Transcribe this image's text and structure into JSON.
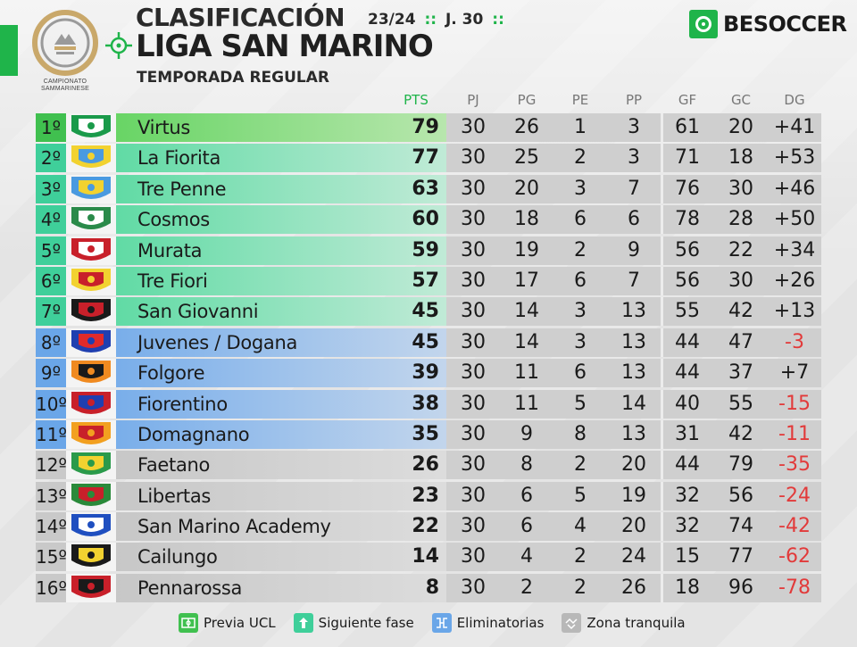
{
  "header": {
    "title": "CLASIFICACIÓN",
    "season": "23/24",
    "separator": "::",
    "matchday": "J. 30",
    "league": "LIGA SAN MARINO",
    "phase": "TEMPORADA REGULAR",
    "league_logo_caption": "CAMPIONATO SAMMARINESE",
    "brand": "BESOCCER"
  },
  "colors": {
    "accent": "#1fb44a",
    "negative": "#e23a3a",
    "ucl": "#40c04f",
    "next_phase": "#3fcf9a",
    "playoffs": "#6aa6e8",
    "safe": "#c9c9c9"
  },
  "columns": [
    "PTS",
    "PJ",
    "PG",
    "PE",
    "PP",
    "GF",
    "GC",
    "DG"
  ],
  "rows": [
    {
      "pos": "1º",
      "team": "Virtus",
      "pts": "79",
      "pj": "30",
      "pg": "26",
      "pe": "1",
      "pp": "3",
      "gf": "61",
      "gc": "20",
      "dg": "+41",
      "zone": "c1",
      "crest": "virtus-crest"
    },
    {
      "pos": "2º",
      "team": "La Fiorita",
      "pts": "77",
      "pj": "30",
      "pg": "25",
      "pe": "2",
      "pp": "3",
      "gf": "71",
      "gc": "18",
      "dg": "+53",
      "zone": "c2",
      "crest": "la-fiorita-crest"
    },
    {
      "pos": "3º",
      "team": "Tre Penne",
      "pts": "63",
      "pj": "30",
      "pg": "20",
      "pe": "3",
      "pp": "7",
      "gf": "76",
      "gc": "30",
      "dg": "+46",
      "zone": "c2",
      "crest": "tre-penne-crest"
    },
    {
      "pos": "4º",
      "team": "Cosmos",
      "pts": "60",
      "pj": "30",
      "pg": "18",
      "pe": "6",
      "pp": "6",
      "gf": "78",
      "gc": "28",
      "dg": "+50",
      "zone": "c2",
      "crest": "cosmos-crest"
    },
    {
      "pos": "5º",
      "team": "Murata",
      "pts": "59",
      "pj": "30",
      "pg": "19",
      "pe": "2",
      "pp": "9",
      "gf": "56",
      "gc": "22",
      "dg": "+34",
      "zone": "c2",
      "crest": "murata-crest"
    },
    {
      "pos": "6º",
      "team": "Tre Fiori",
      "pts": "57",
      "pj": "30",
      "pg": "17",
      "pe": "6",
      "pp": "7",
      "gf": "56",
      "gc": "30",
      "dg": "+26",
      "zone": "c2",
      "crest": "tre-fiori-crest"
    },
    {
      "pos": "7º",
      "team": "San Giovanni",
      "pts": "45",
      "pj": "30",
      "pg": "14",
      "pe": "3",
      "pp": "13",
      "gf": "55",
      "gc": "42",
      "dg": "+13",
      "zone": "c2",
      "crest": "san-giovanni-crest"
    },
    {
      "pos": "8º",
      "team": "Juvenes / Dogana",
      "pts": "45",
      "pj": "30",
      "pg": "14",
      "pe": "3",
      "pp": "13",
      "gf": "44",
      "gc": "47",
      "dg": "-3",
      "zone": "c3",
      "crest": "juvenes-dogana-crest"
    },
    {
      "pos": "9º",
      "team": "Folgore",
      "pts": "39",
      "pj": "30",
      "pg": "11",
      "pe": "6",
      "pp": "13",
      "gf": "44",
      "gc": "37",
      "dg": "+7",
      "zone": "c3",
      "crest": "folgore-crest"
    },
    {
      "pos": "10º",
      "team": "Fiorentino",
      "pts": "38",
      "pj": "30",
      "pg": "11",
      "pe": "5",
      "pp": "14",
      "gf": "40",
      "gc": "55",
      "dg": "-15",
      "zone": "c3",
      "crest": "fiorentino-crest"
    },
    {
      "pos": "11º",
      "team": "Domagnano",
      "pts": "35",
      "pj": "30",
      "pg": "9",
      "pe": "8",
      "pp": "13",
      "gf": "31",
      "gc": "42",
      "dg": "-11",
      "zone": "c3",
      "crest": "domagnano-crest"
    },
    {
      "pos": "12º",
      "team": "Faetano",
      "pts": "26",
      "pj": "30",
      "pg": "8",
      "pe": "2",
      "pp": "20",
      "gf": "44",
      "gc": "79",
      "dg": "-35",
      "zone": "c4",
      "crest": "faetano-crest"
    },
    {
      "pos": "13º",
      "team": "Libertas",
      "pts": "23",
      "pj": "30",
      "pg": "6",
      "pe": "5",
      "pp": "19",
      "gf": "32",
      "gc": "56",
      "dg": "-24",
      "zone": "c4",
      "crest": "libertas-crest"
    },
    {
      "pos": "14º",
      "team": "San Marino Academy",
      "pts": "22",
      "pj": "30",
      "pg": "6",
      "pe": "4",
      "pp": "20",
      "gf": "32",
      "gc": "74",
      "dg": "-42",
      "zone": "c4",
      "crest": "san-marino-academy-crest"
    },
    {
      "pos": "15º",
      "team": "Cailungo",
      "pts": "14",
      "pj": "30",
      "pg": "4",
      "pe": "2",
      "pp": "24",
      "gf": "15",
      "gc": "77",
      "dg": "-62",
      "zone": "c4",
      "crest": "cailungo-crest"
    },
    {
      "pos": "16º",
      "team": "Pennarossa",
      "pts": "8",
      "pj": "30",
      "pg": "2",
      "pe": "2",
      "pp": "26",
      "gf": "18",
      "gc": "96",
      "dg": "-78",
      "zone": "c4",
      "crest": "pennarossa-crest"
    }
  ],
  "legend": [
    {
      "label": "Previa UCL",
      "zone": "c1",
      "icon": "pitch-icon"
    },
    {
      "label": "Siguiente fase",
      "zone": "c2",
      "icon": "arrows-icon"
    },
    {
      "label": "Eliminatorias",
      "zone": "c3",
      "icon": "bracket-icon"
    },
    {
      "label": "Zona tranquila",
      "zone": "c4",
      "icon": "handshake-icon"
    }
  ]
}
